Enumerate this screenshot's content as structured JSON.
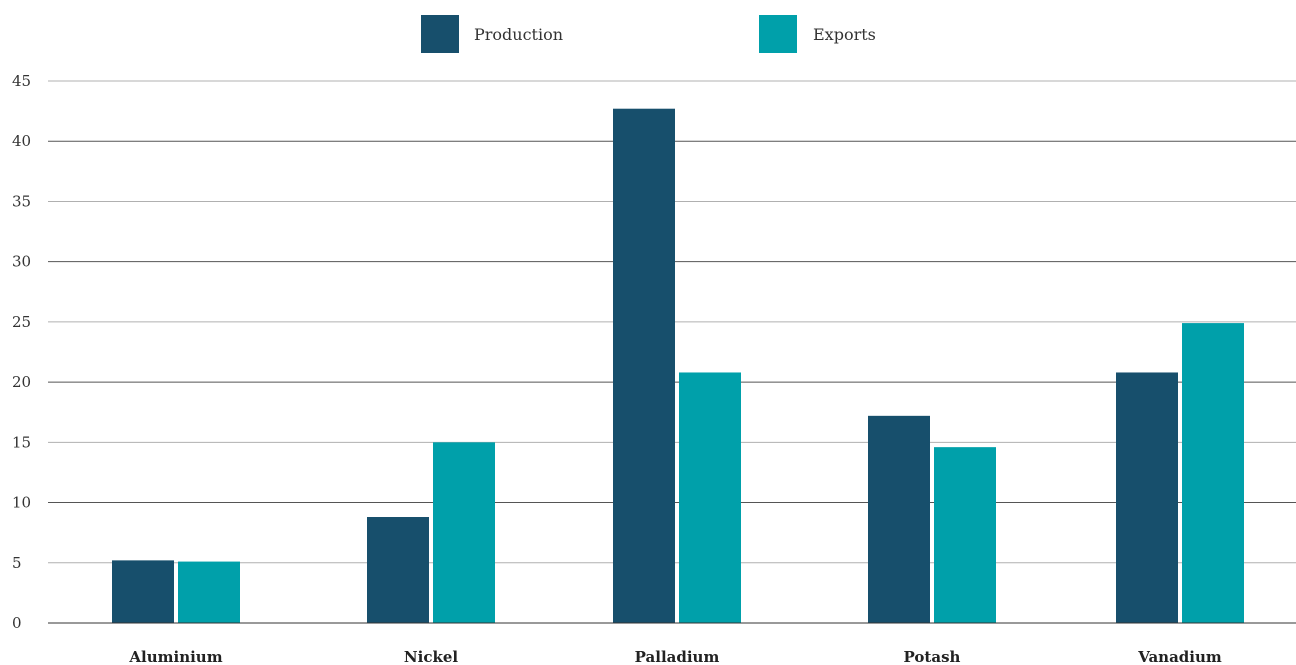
{
  "chart_data": {
    "type": "bar",
    "categories": [
      "Aluminium",
      "Nickel",
      "Palladium",
      "Potash",
      "Vanadium"
    ],
    "series": [
      {
        "name": "Production",
        "values": [
          5.2,
          8.8,
          42.7,
          17.2,
          20.8
        ],
        "color": "#174f6c"
      },
      {
        "name": "Exports",
        "values": [
          5.1,
          15.0,
          20.8,
          14.6,
          24.9
        ],
        "color": "#00a0aa"
      }
    ],
    "title": "",
    "xlabel": "",
    "ylabel": "",
    "ylim": [
      0,
      45
    ],
    "yticks": [
      0,
      5,
      10,
      15,
      20,
      25,
      30,
      35,
      40,
      45
    ],
    "grid": true,
    "legend_position": "top-center"
  }
}
